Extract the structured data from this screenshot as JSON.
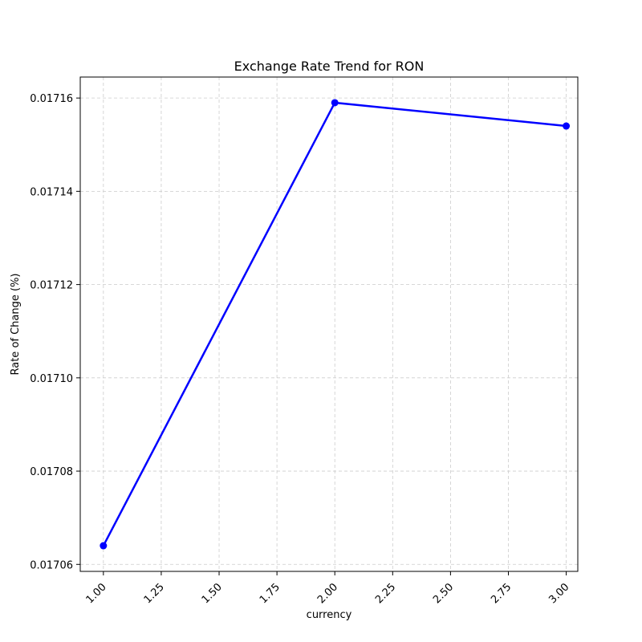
{
  "chart_data": {
    "type": "line",
    "title": "Exchange Rate Trend for RON",
    "xlabel": "currency",
    "ylabel": "Rate of Change (%)",
    "x": [
      1.0,
      2.0,
      3.0
    ],
    "series": [
      {
        "values": [
          0.017064,
          0.017159,
          0.017154
        ]
      }
    ],
    "xlim": [
      0.9,
      3.05
    ],
    "ylim": [
      0.0170585,
      0.0171645
    ],
    "xticks": [
      1.0,
      1.25,
      1.5,
      1.75,
      2.0,
      2.25,
      2.5,
      2.75,
      3.0
    ],
    "xtick_labels": [
      "1.00",
      "1.25",
      "1.50",
      "1.75",
      "2.00",
      "2.25",
      "2.50",
      "2.75",
      "3.00"
    ],
    "yticks": [
      0.01706,
      0.01708,
      0.0171,
      0.01712,
      0.01714,
      0.01716
    ],
    "ytick_labels": [
      "0.01706",
      "0.01708",
      "0.01710",
      "0.01712",
      "0.01714",
      "0.01716"
    ],
    "grid": true,
    "line_color": "#0000ff"
  }
}
